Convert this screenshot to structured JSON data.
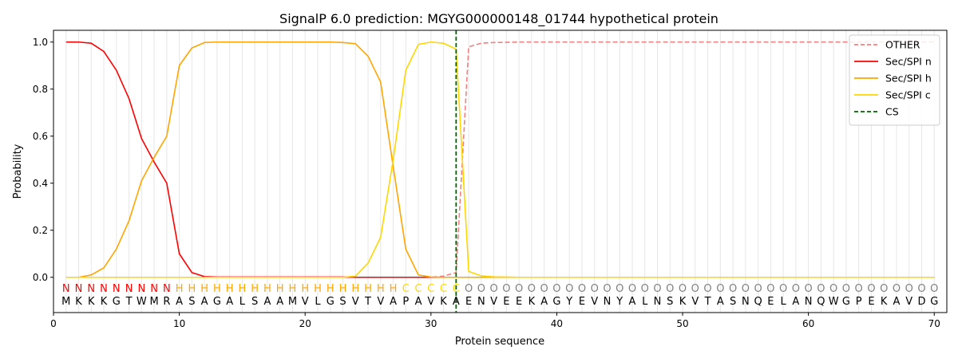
{
  "chart_data": {
    "type": "line",
    "title": "SignalP 6.0 prediction: MGYG000000148_01744 hypothetical protein",
    "xlabel": "Protein sequence",
    "ylabel": "Probability",
    "xlim": [
      0,
      71
    ],
    "ylim": [
      -0.15,
      1.05
    ],
    "xticks": [
      0,
      10,
      20,
      30,
      40,
      50,
      60,
      70
    ],
    "yticks": [
      0.0,
      0.2,
      0.4,
      0.6,
      0.8,
      1.0
    ],
    "ytick_labels": [
      "0.0",
      "0.2",
      "0.4",
      "0.6",
      "0.8",
      "1.0"
    ],
    "grid": "vertical lines at each residue",
    "legend_position": "top-right",
    "cleavage_site": {
      "name": "CS",
      "x": 32,
      "color": "#006400",
      "style": "dashed"
    },
    "sequence": [
      "M",
      "K",
      "K",
      "K",
      "G",
      "T",
      "W",
      "M",
      "R",
      "A",
      "S",
      "A",
      "G",
      "A",
      "L",
      "S",
      "A",
      "A",
      "M",
      "V",
      "L",
      "G",
      "S",
      "V",
      "T",
      "V",
      "A",
      "P",
      "A",
      "V",
      "K",
      "A",
      "E",
      "N",
      "V",
      "E",
      "E",
      "K",
      "A",
      "G",
      "Y",
      "E",
      "V",
      "N",
      "Y",
      "A",
      "L",
      "N",
      "S",
      "K",
      "V",
      "T",
      "A",
      "S",
      "N",
      "Q",
      "E",
      "L",
      "A",
      "N",
      "Q",
      "W",
      "G",
      "P",
      "E",
      "K",
      "A",
      "V",
      "D",
      "G"
    ],
    "labels": [
      "N",
      "N",
      "N",
      "N",
      "N",
      "N",
      "N",
      "N",
      "N",
      "H",
      "H",
      "H",
      "H",
      "H",
      "H",
      "H",
      "H",
      "H",
      "H",
      "H",
      "H",
      "H",
      "H",
      "H",
      "H",
      "H",
      "H",
      "C",
      "C",
      "C",
      "C",
      "C",
      "O",
      "O",
      "O",
      "O",
      "O",
      "O",
      "O",
      "O",
      "O",
      "O",
      "O",
      "O",
      "O",
      "O",
      "O",
      "O",
      "O",
      "O",
      "O",
      "O",
      "O",
      "O",
      "O",
      "O",
      "O",
      "O",
      "O",
      "O",
      "O",
      "O",
      "O",
      "O",
      "O",
      "O",
      "O",
      "O",
      "O",
      "O"
    ],
    "label_colors": {
      "N": "#ff0000",
      "H": "#ffa500",
      "C": "#ffd700",
      "O": "#808080"
    },
    "series": [
      {
        "name": "OTHER",
        "color": "#f08080",
        "style": "dashed",
        "values": [
          0,
          0,
          0,
          0,
          0,
          0,
          0,
          0,
          0,
          0,
          0,
          0,
          0,
          0,
          0,
          0,
          0,
          0,
          0,
          0,
          0,
          0,
          0,
          0,
          0,
          0,
          0,
          0,
          0,
          0,
          0.005,
          0.02,
          0.98,
          0.995,
          0.998,
          0.999,
          1,
          1,
          1,
          1,
          1,
          1,
          1,
          1,
          1,
          1,
          1,
          1,
          1,
          1,
          1,
          1,
          1,
          1,
          1,
          1,
          1,
          1,
          1,
          1,
          1,
          1,
          1,
          1,
          1,
          1,
          1,
          1,
          1,
          1
        ]
      },
      {
        "name": "Sec/SPI n",
        "color": "#ff0000",
        "style": "solid",
        "values": [
          1.0,
          1.0,
          0.995,
          0.96,
          0.88,
          0.76,
          0.59,
          0.49,
          0.4,
          0.1,
          0.02,
          0.003,
          0.001,
          0.001,
          0.001,
          0.001,
          0.001,
          0.001,
          0.001,
          0.001,
          0.001,
          0.001,
          0.001,
          0,
          0,
          0,
          0,
          0,
          0,
          0,
          0,
          0,
          0,
          0,
          0,
          0,
          0,
          0,
          0,
          0,
          0,
          0,
          0,
          0,
          0,
          0,
          0,
          0,
          0,
          0,
          0,
          0,
          0,
          0,
          0,
          0,
          0,
          0,
          0,
          0,
          0,
          0,
          0,
          0,
          0,
          0,
          0,
          0,
          0,
          0
        ]
      },
      {
        "name": "Sec/SPI h",
        "color": "#ffa500",
        "style": "solid",
        "values": [
          0,
          0,
          0.01,
          0.04,
          0.12,
          0.24,
          0.41,
          0.51,
          0.6,
          0.9,
          0.975,
          0.998,
          1.0,
          1.0,
          1.0,
          1.0,
          1.0,
          1.0,
          1.0,
          1.0,
          1.0,
          1.0,
          0.998,
          0.993,
          0.94,
          0.83,
          0.47,
          0.12,
          0.01,
          0.001,
          0,
          0,
          0,
          0,
          0,
          0,
          0,
          0,
          0,
          0,
          0,
          0,
          0,
          0,
          0,
          0,
          0,
          0,
          0,
          0,
          0,
          0,
          0,
          0,
          0,
          0,
          0,
          0,
          0,
          0,
          0,
          0,
          0,
          0,
          0,
          0,
          0,
          0,
          0,
          0
        ]
      },
      {
        "name": "Sec/SPI c",
        "color": "#ffd700",
        "style": "solid",
        "values": [
          0,
          0,
          0,
          0,
          0,
          0,
          0,
          0,
          0,
          0,
          0,
          0,
          0,
          0,
          0,
          0,
          0,
          0,
          0,
          0,
          0,
          0,
          0,
          0.005,
          0.06,
          0.17,
          0.5,
          0.88,
          0.99,
          1.0,
          0.995,
          0.97,
          0.025,
          0.006,
          0.002,
          0.001,
          0,
          0,
          0,
          0,
          0,
          0,
          0,
          0,
          0,
          0,
          0,
          0,
          0,
          0,
          0,
          0,
          0,
          0,
          0,
          0,
          0,
          0,
          0,
          0,
          0,
          0,
          0,
          0,
          0,
          0,
          0,
          0,
          0,
          0
        ]
      }
    ]
  }
}
